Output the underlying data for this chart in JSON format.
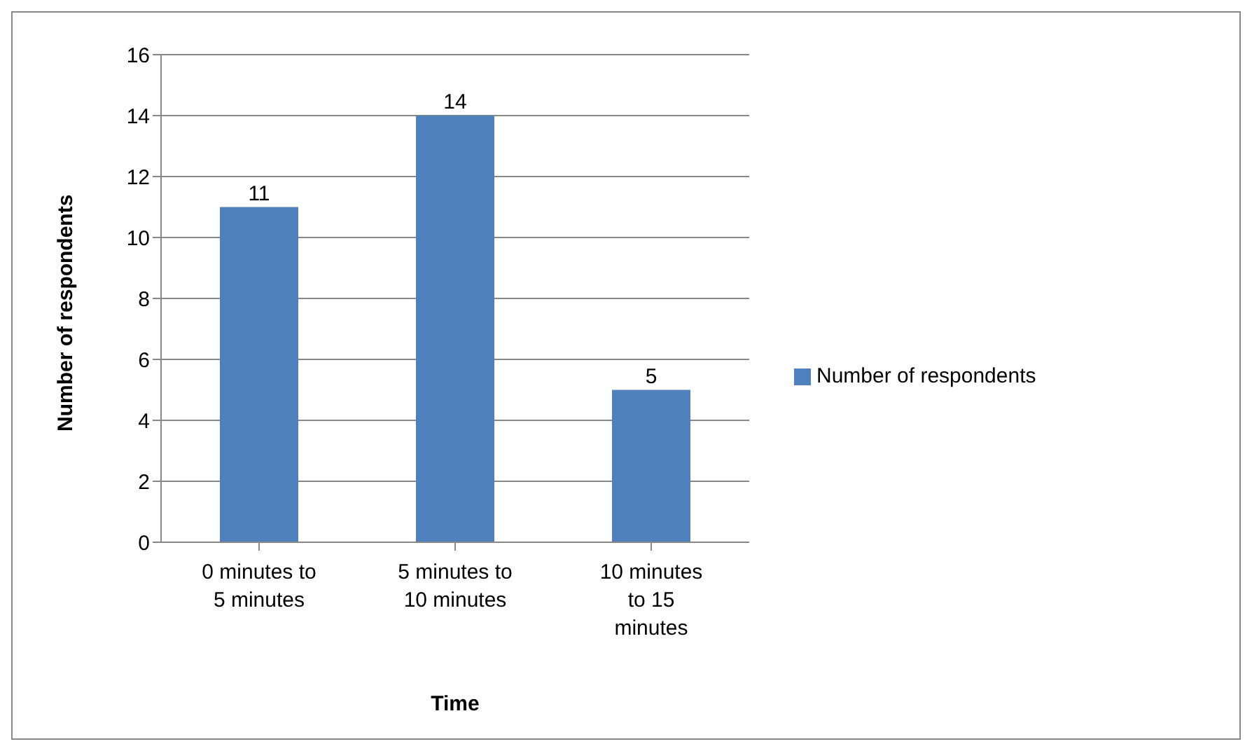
{
  "chart_data": {
    "type": "bar",
    "xlabel": "Time",
    "ylabel": "Number of respondents",
    "categories": [
      "0 minutes to 5 minutes",
      "5 minutes to 10 minutes",
      "10 minutes to 15 minutes"
    ],
    "series": [
      {
        "name": "Number of respondents",
        "color": "#4f81bd",
        "values": [
          11,
          14,
          5
        ]
      }
    ],
    "ylim": [
      0,
      16
    ],
    "yticks": [
      0,
      2,
      4,
      6,
      8,
      10,
      12,
      14,
      16
    ],
    "grid": "y",
    "legend": "right",
    "data_labels": true
  }
}
